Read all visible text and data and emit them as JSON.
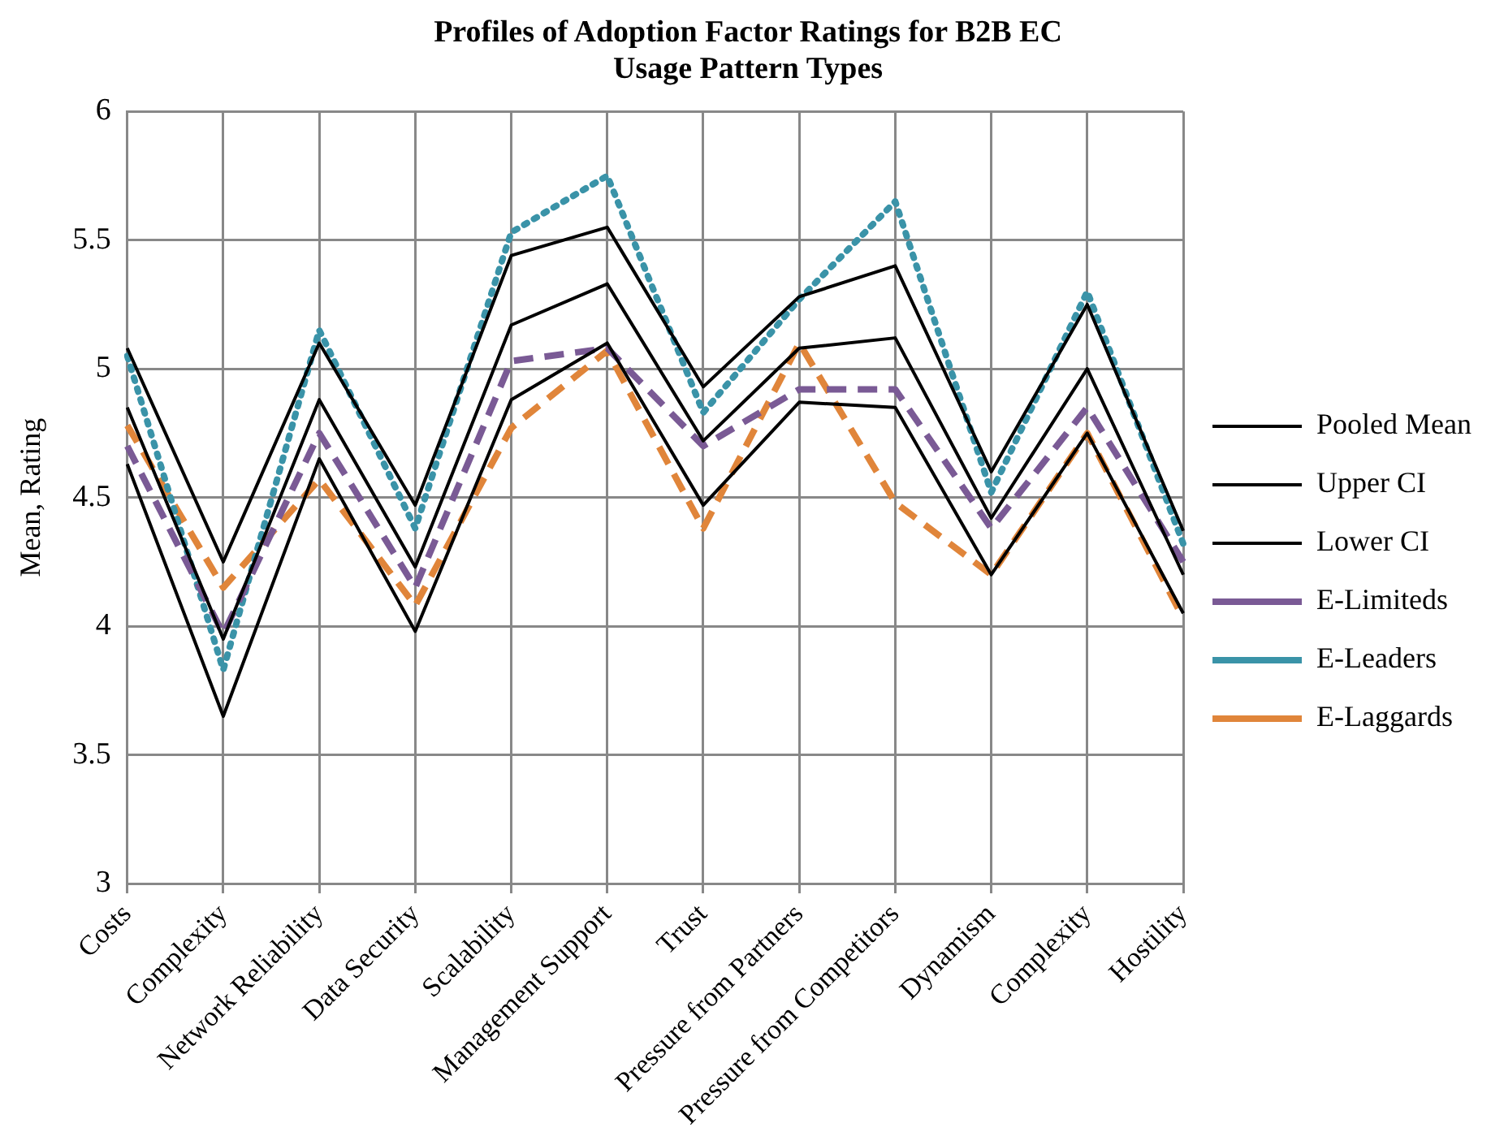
{
  "chart_data": {
    "type": "line",
    "title": "Profiles of Adoption Factor Ratings for B2B EC Usage Pattern Types",
    "ylabel": "Mean, Rating",
    "categories": [
      "Costs",
      "Complexity",
      "Network Reliability",
      "Data Security",
      "Scalability",
      "Management Support",
      "Trust",
      "Pressure from Partners",
      "Pressure from Competitors",
      "Dynamism",
      "Complexity",
      "Hostility"
    ],
    "series": [
      {
        "name": "Pooled Mean",
        "color": "#000000",
        "line_style": "solid",
        "values": [
          4.85,
          3.95,
          4.88,
          4.23,
          5.17,
          5.33,
          4.72,
          5.08,
          5.12,
          4.42,
          5.0,
          4.2
        ]
      },
      {
        "name": "Upper CI",
        "color": "#000000",
        "line_style": "solid",
        "values": [
          5.08,
          4.25,
          5.1,
          4.47,
          5.44,
          5.55,
          4.93,
          5.28,
          5.4,
          4.6,
          5.25,
          4.37
        ]
      },
      {
        "name": "Lower CI",
        "color": "#000000",
        "line_style": "solid",
        "values": [
          4.63,
          3.65,
          4.65,
          3.98,
          4.88,
          5.1,
          4.47,
          4.87,
          4.85,
          4.2,
          4.75,
          4.05
        ]
      },
      {
        "name": "E-Limiteds",
        "color": "#7a5a95",
        "line_style": "dashed",
        "values": [
          4.7,
          3.97,
          4.75,
          4.15,
          5.03,
          5.08,
          4.7,
          4.92,
          4.92,
          4.38,
          4.85,
          4.25
        ]
      },
      {
        "name": "E-Leaders",
        "color": "#3a93a8",
        "line_style": "dotted",
        "values": [
          5.05,
          3.83,
          5.15,
          4.38,
          5.53,
          5.75,
          4.83,
          5.27,
          5.65,
          4.52,
          5.3,
          4.32
        ]
      },
      {
        "name": "E-Laggards",
        "color": "#e0853a",
        "line_style": "dashed",
        "values": [
          4.78,
          4.15,
          4.57,
          4.08,
          4.77,
          5.07,
          4.38,
          5.1,
          4.48,
          4.2,
          4.75,
          4.03
        ]
      }
    ],
    "ylim": [
      3,
      6
    ],
    "yticks": [
      3,
      3.5,
      4,
      4.5,
      5,
      5.5,
      6
    ],
    "grid": true,
    "legend": "right",
    "marker": "none"
  }
}
